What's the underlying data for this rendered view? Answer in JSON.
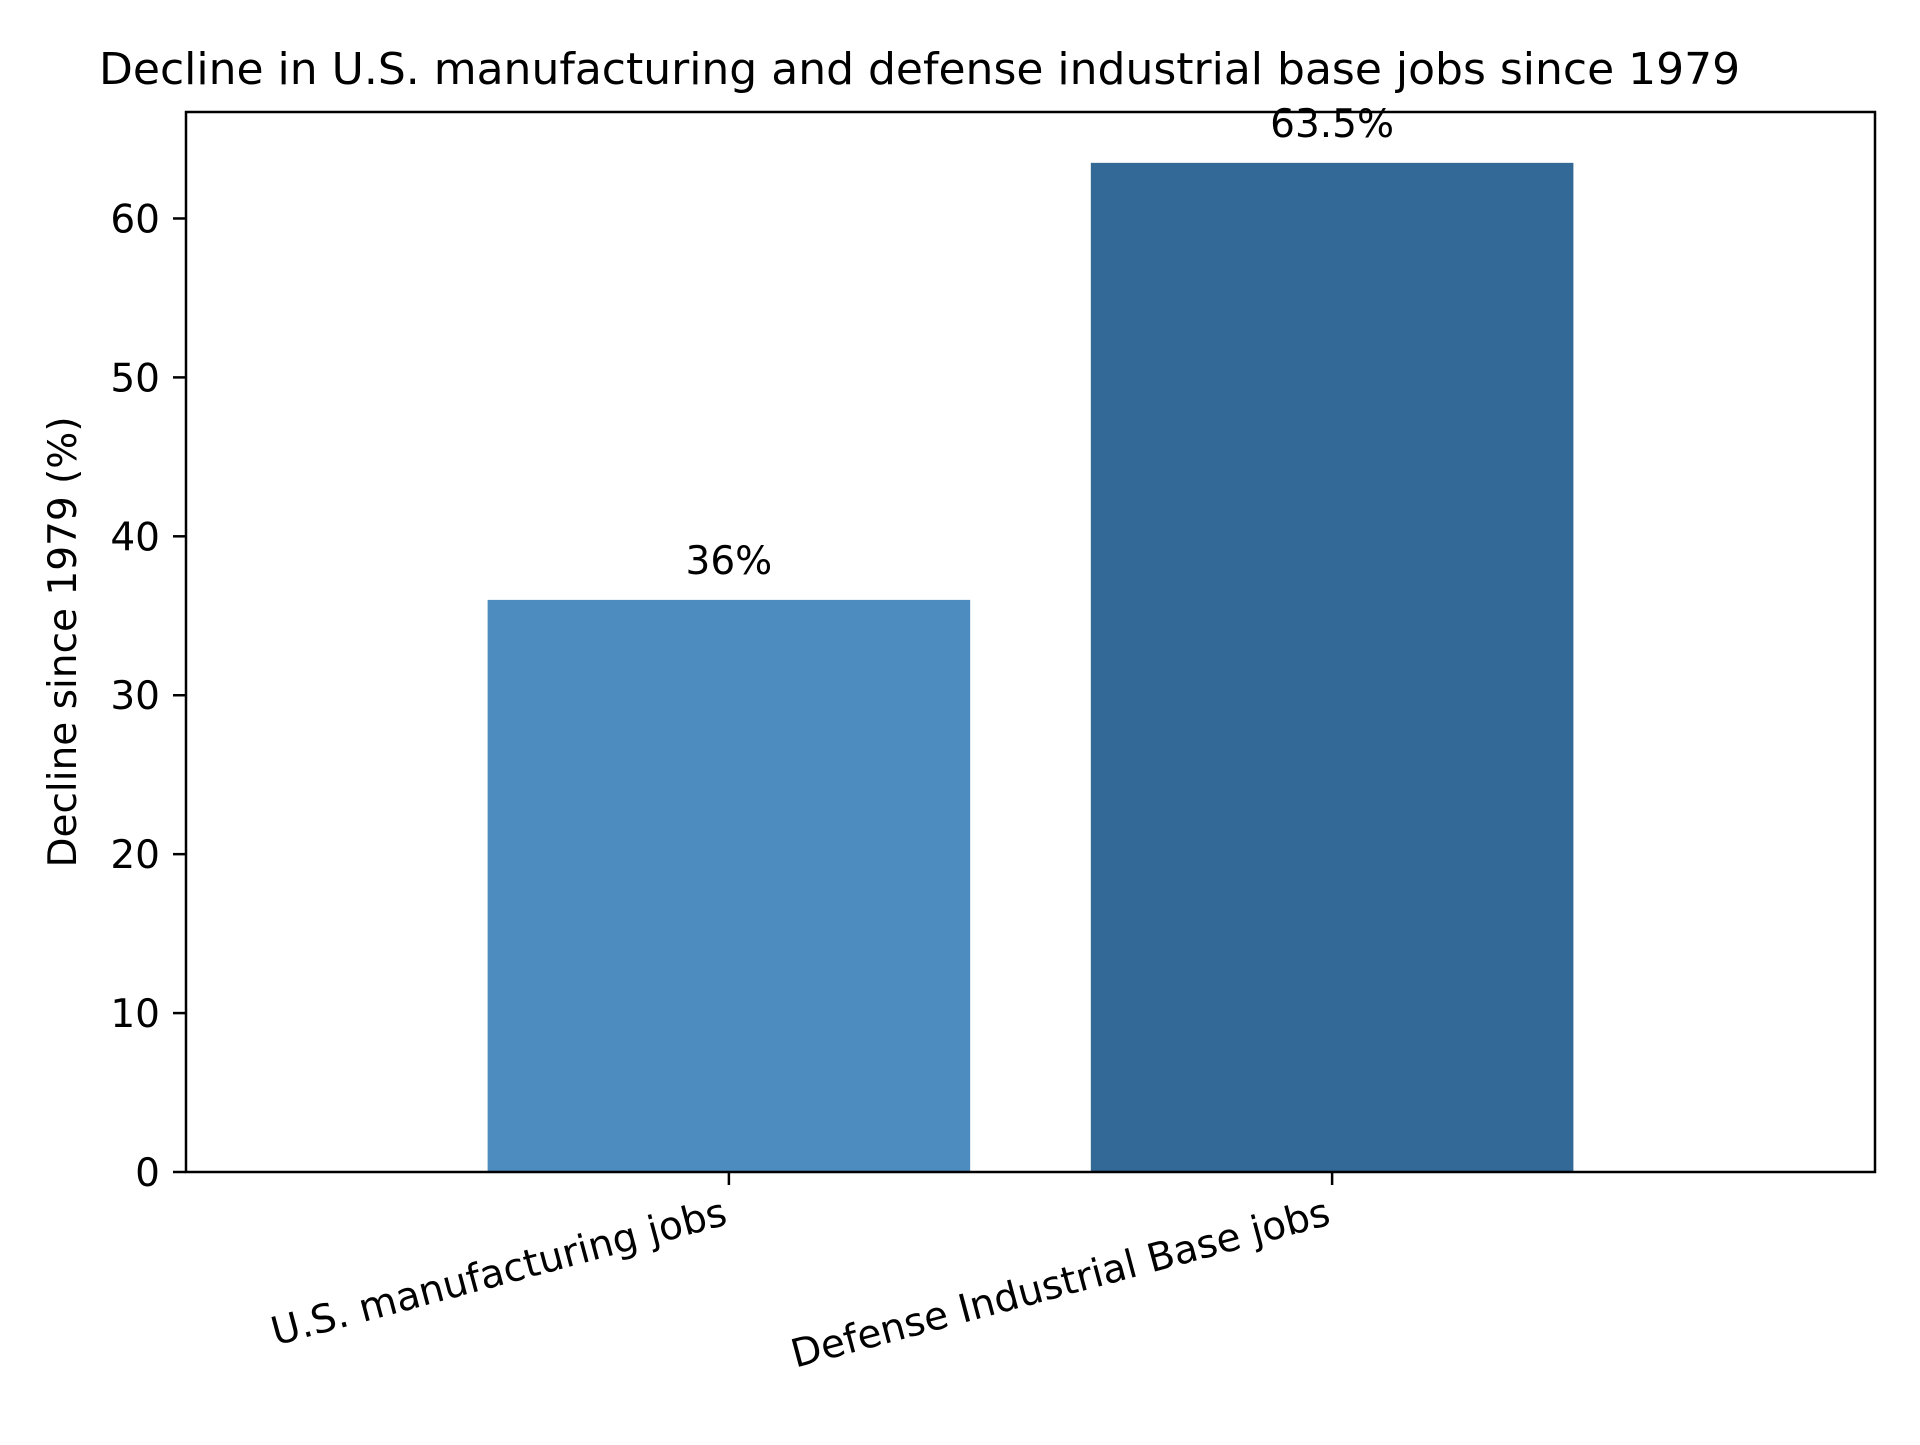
{
  "chart_data": {
    "type": "bar",
    "title": "Decline in U.S. manufacturing and defense industrial base jobs since 1979",
    "xlabel": "",
    "ylabel": "Decline since 1979 (%)",
    "categories": [
      "U.S. manufacturing jobs",
      "Defense Industrial Base jobs"
    ],
    "values": [
      36,
      63.5
    ],
    "value_labels": [
      "36%",
      "63.5%"
    ],
    "colors": [
      "#4d8cbf",
      "#336996"
    ],
    "ylim": [
      0,
      66.7
    ],
    "yticks": [
      0,
      10,
      20,
      30,
      40,
      50,
      60
    ],
    "ytick_labels": [
      "0",
      "10",
      "20",
      "30",
      "40",
      "50",
      "60"
    ],
    "grid": false,
    "legend": "none"
  }
}
